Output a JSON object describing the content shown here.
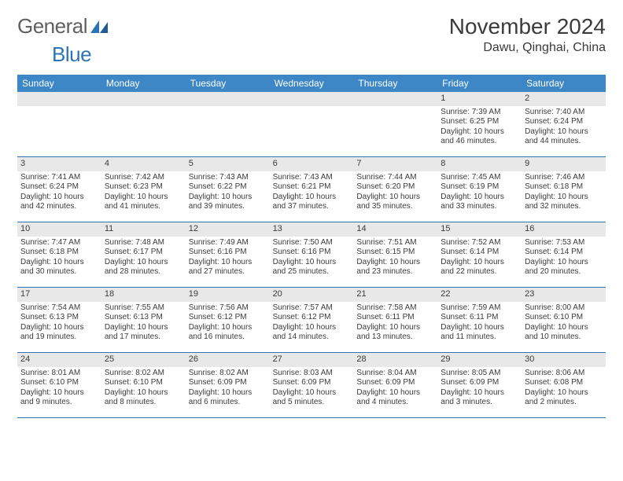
{
  "logo": {
    "text_a": "General",
    "text_b": "Blue"
  },
  "header": {
    "month_title": "November 2024",
    "location": "Dawu, Qinghai, China"
  },
  "colors": {
    "header_bar": "#3d87c7",
    "grid_border": "#2e74b5",
    "daynum_bg": "#e8e8e8",
    "text": "#3b3b3b",
    "logo_gray": "#5f5f5f",
    "logo_blue": "#2e74b5",
    "bg": "#ffffff"
  },
  "weekdays": [
    "Sunday",
    "Monday",
    "Tuesday",
    "Wednesday",
    "Thursday",
    "Friday",
    "Saturday"
  ],
  "weeks": [
    [
      {
        "num": "",
        "sunrise": "",
        "sunset": "",
        "daylight": ""
      },
      {
        "num": "",
        "sunrise": "",
        "sunset": "",
        "daylight": ""
      },
      {
        "num": "",
        "sunrise": "",
        "sunset": "",
        "daylight": ""
      },
      {
        "num": "",
        "sunrise": "",
        "sunset": "",
        "daylight": ""
      },
      {
        "num": "",
        "sunrise": "",
        "sunset": "",
        "daylight": ""
      },
      {
        "num": "1",
        "sunrise": "Sunrise: 7:39 AM",
        "sunset": "Sunset: 6:25 PM",
        "daylight": "Daylight: 10 hours and 46 minutes."
      },
      {
        "num": "2",
        "sunrise": "Sunrise: 7:40 AM",
        "sunset": "Sunset: 6:24 PM",
        "daylight": "Daylight: 10 hours and 44 minutes."
      }
    ],
    [
      {
        "num": "3",
        "sunrise": "Sunrise: 7:41 AM",
        "sunset": "Sunset: 6:24 PM",
        "daylight": "Daylight: 10 hours and 42 minutes."
      },
      {
        "num": "4",
        "sunrise": "Sunrise: 7:42 AM",
        "sunset": "Sunset: 6:23 PM",
        "daylight": "Daylight: 10 hours and 41 minutes."
      },
      {
        "num": "5",
        "sunrise": "Sunrise: 7:43 AM",
        "sunset": "Sunset: 6:22 PM",
        "daylight": "Daylight: 10 hours and 39 minutes."
      },
      {
        "num": "6",
        "sunrise": "Sunrise: 7:43 AM",
        "sunset": "Sunset: 6:21 PM",
        "daylight": "Daylight: 10 hours and 37 minutes."
      },
      {
        "num": "7",
        "sunrise": "Sunrise: 7:44 AM",
        "sunset": "Sunset: 6:20 PM",
        "daylight": "Daylight: 10 hours and 35 minutes."
      },
      {
        "num": "8",
        "sunrise": "Sunrise: 7:45 AM",
        "sunset": "Sunset: 6:19 PM",
        "daylight": "Daylight: 10 hours and 33 minutes."
      },
      {
        "num": "9",
        "sunrise": "Sunrise: 7:46 AM",
        "sunset": "Sunset: 6:18 PM",
        "daylight": "Daylight: 10 hours and 32 minutes."
      }
    ],
    [
      {
        "num": "10",
        "sunrise": "Sunrise: 7:47 AM",
        "sunset": "Sunset: 6:18 PM",
        "daylight": "Daylight: 10 hours and 30 minutes."
      },
      {
        "num": "11",
        "sunrise": "Sunrise: 7:48 AM",
        "sunset": "Sunset: 6:17 PM",
        "daylight": "Daylight: 10 hours and 28 minutes."
      },
      {
        "num": "12",
        "sunrise": "Sunrise: 7:49 AM",
        "sunset": "Sunset: 6:16 PM",
        "daylight": "Daylight: 10 hours and 27 minutes."
      },
      {
        "num": "13",
        "sunrise": "Sunrise: 7:50 AM",
        "sunset": "Sunset: 6:16 PM",
        "daylight": "Daylight: 10 hours and 25 minutes."
      },
      {
        "num": "14",
        "sunrise": "Sunrise: 7:51 AM",
        "sunset": "Sunset: 6:15 PM",
        "daylight": "Daylight: 10 hours and 23 minutes."
      },
      {
        "num": "15",
        "sunrise": "Sunrise: 7:52 AM",
        "sunset": "Sunset: 6:14 PM",
        "daylight": "Daylight: 10 hours and 22 minutes."
      },
      {
        "num": "16",
        "sunrise": "Sunrise: 7:53 AM",
        "sunset": "Sunset: 6:14 PM",
        "daylight": "Daylight: 10 hours and 20 minutes."
      }
    ],
    [
      {
        "num": "17",
        "sunrise": "Sunrise: 7:54 AM",
        "sunset": "Sunset: 6:13 PM",
        "daylight": "Daylight: 10 hours and 19 minutes."
      },
      {
        "num": "18",
        "sunrise": "Sunrise: 7:55 AM",
        "sunset": "Sunset: 6:13 PM",
        "daylight": "Daylight: 10 hours and 17 minutes."
      },
      {
        "num": "19",
        "sunrise": "Sunrise: 7:56 AM",
        "sunset": "Sunset: 6:12 PM",
        "daylight": "Daylight: 10 hours and 16 minutes."
      },
      {
        "num": "20",
        "sunrise": "Sunrise: 7:57 AM",
        "sunset": "Sunset: 6:12 PM",
        "daylight": "Daylight: 10 hours and 14 minutes."
      },
      {
        "num": "21",
        "sunrise": "Sunrise: 7:58 AM",
        "sunset": "Sunset: 6:11 PM",
        "daylight": "Daylight: 10 hours and 13 minutes."
      },
      {
        "num": "22",
        "sunrise": "Sunrise: 7:59 AM",
        "sunset": "Sunset: 6:11 PM",
        "daylight": "Daylight: 10 hours and 11 minutes."
      },
      {
        "num": "23",
        "sunrise": "Sunrise: 8:00 AM",
        "sunset": "Sunset: 6:10 PM",
        "daylight": "Daylight: 10 hours and 10 minutes."
      }
    ],
    [
      {
        "num": "24",
        "sunrise": "Sunrise: 8:01 AM",
        "sunset": "Sunset: 6:10 PM",
        "daylight": "Daylight: 10 hours and 9 minutes."
      },
      {
        "num": "25",
        "sunrise": "Sunrise: 8:02 AM",
        "sunset": "Sunset: 6:10 PM",
        "daylight": "Daylight: 10 hours and 8 minutes."
      },
      {
        "num": "26",
        "sunrise": "Sunrise: 8:02 AM",
        "sunset": "Sunset: 6:09 PM",
        "daylight": "Daylight: 10 hours and 6 minutes."
      },
      {
        "num": "27",
        "sunrise": "Sunrise: 8:03 AM",
        "sunset": "Sunset: 6:09 PM",
        "daylight": "Daylight: 10 hours and 5 minutes."
      },
      {
        "num": "28",
        "sunrise": "Sunrise: 8:04 AM",
        "sunset": "Sunset: 6:09 PM",
        "daylight": "Daylight: 10 hours and 4 minutes."
      },
      {
        "num": "29",
        "sunrise": "Sunrise: 8:05 AM",
        "sunset": "Sunset: 6:09 PM",
        "daylight": "Daylight: 10 hours and 3 minutes."
      },
      {
        "num": "30",
        "sunrise": "Sunrise: 8:06 AM",
        "sunset": "Sunset: 6:08 PM",
        "daylight": "Daylight: 10 hours and 2 minutes."
      }
    ]
  ]
}
